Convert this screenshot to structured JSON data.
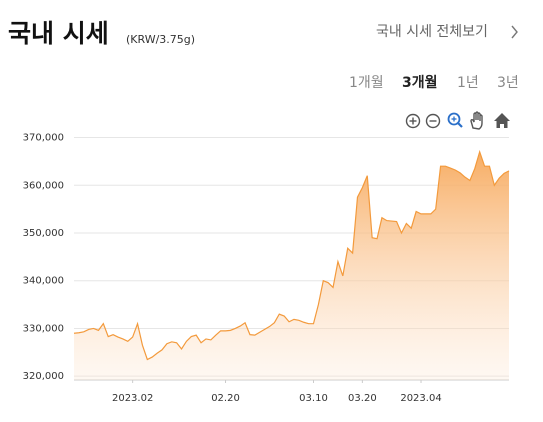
{
  "header": {
    "title": "국내 시세",
    "unit": "(KRW/3.75g)",
    "link": "국내 시세 전체보기"
  },
  "periods": [
    {
      "label": "1개월"
    },
    {
      "label": "3개월",
      "selected": true
    },
    {
      "label": "1년"
    },
    {
      "label": "3년"
    }
  ],
  "chart_data": {
    "type": "line",
    "area": true,
    "color": "#f39a3c",
    "grid": true,
    "x": [
      "2023-01-20",
      "2023-01-21",
      "2023-01-22",
      "2023-01-23",
      "2023-01-24",
      "2023-01-25",
      "2023-01-26",
      "2023-01-27",
      "2023-01-28",
      "2023-01-29",
      "2023-01-30",
      "2023-01-31",
      "2023-02-01",
      "2023-02-02",
      "2023-02-03",
      "2023-02-04",
      "2023-02-05",
      "2023-02-06",
      "2023-02-07",
      "2023-02-08",
      "2023-02-09",
      "2023-02-10",
      "2023-02-11",
      "2023-02-12",
      "2023-02-13",
      "2023-02-14",
      "2023-02-15",
      "2023-02-16",
      "2023-02-17",
      "2023-02-18",
      "2023-02-19",
      "2023-02-20",
      "2023-02-21",
      "2023-02-22",
      "2023-02-23",
      "2023-02-24",
      "2023-02-25",
      "2023-02-26",
      "2023-02-27",
      "2023-02-28",
      "2023-03-01",
      "2023-03-02",
      "2023-03-03",
      "2023-03-04",
      "2023-03-05",
      "2023-03-06",
      "2023-03-07",
      "2023-03-08",
      "2023-03-09",
      "2023-03-10",
      "2023-03-11",
      "2023-03-12",
      "2023-03-13",
      "2023-03-14",
      "2023-03-15",
      "2023-03-16",
      "2023-03-17",
      "2023-03-18",
      "2023-03-19",
      "2023-03-20",
      "2023-03-21",
      "2023-03-22",
      "2023-03-23",
      "2023-03-24",
      "2023-03-25",
      "2023-03-26",
      "2023-03-27",
      "2023-03-28",
      "2023-03-29",
      "2023-03-30",
      "2023-03-31",
      "2023-04-01",
      "2023-04-02",
      "2023-04-03",
      "2023-04-04",
      "2023-04-05",
      "2023-04-06",
      "2023-04-07",
      "2023-04-08",
      "2023-04-09",
      "2023-04-10",
      "2023-04-11",
      "2023-04-12",
      "2023-04-13",
      "2023-04-14",
      "2023-04-15",
      "2023-04-16",
      "2023-04-17",
      "2023-04-18",
      "2023-04-19"
    ],
    "values": [
      329000,
      329100,
      329300,
      329800,
      330000,
      329600,
      331000,
      328300,
      328700,
      328200,
      327800,
      327300,
      328200,
      331000,
      326500,
      323500,
      324000,
      324800,
      325500,
      326800,
      327200,
      327000,
      325700,
      327300,
      328300,
      328600,
      327000,
      327800,
      327600,
      328600,
      329500,
      329500,
      329600,
      330000,
      330500,
      331200,
      328700,
      328600,
      329200,
      329800,
      330400,
      331200,
      333000,
      332600,
      331400,
      331900,
      331700,
      331300,
      331000,
      331000,
      335000,
      340000,
      339600,
      338600,
      344000,
      341000,
      346800,
      345800,
      357500,
      359500,
      362000,
      349000,
      348800,
      353200,
      352600,
      352500,
      352400,
      350000,
      352000,
      351000,
      354500,
      354000,
      354000,
      354000,
      355000,
      364000,
      364000,
      363600,
      363200,
      362600,
      361700,
      361000,
      363500,
      367000,
      364000,
      364000,
      360000,
      361500,
      362500,
      363000
    ],
    "xlim": [
      "2023-01-20",
      "2023-04-19"
    ],
    "xticks": [
      {
        "value": "2023-02-01",
        "label": "2023.02"
      },
      {
        "value": "2023-02-20",
        "label": "02.20"
      },
      {
        "value": "2023-03-10",
        "label": "03.10"
      },
      {
        "value": "2023-03-20",
        "label": "03.20"
      },
      {
        "value": "2023-04-01",
        "label": "2023.04"
      }
    ],
    "ylim": [
      319200,
      372000
    ],
    "yticks": [
      {
        "value": 320000,
        "label": "320,000"
      },
      {
        "value": 330000,
        "label": "330,000"
      },
      {
        "value": 340000,
        "label": "340,000"
      },
      {
        "value": 350000,
        "label": "350,000"
      },
      {
        "value": 360000,
        "label": "360,000"
      },
      {
        "value": 370000,
        "label": "370,000"
      }
    ]
  }
}
